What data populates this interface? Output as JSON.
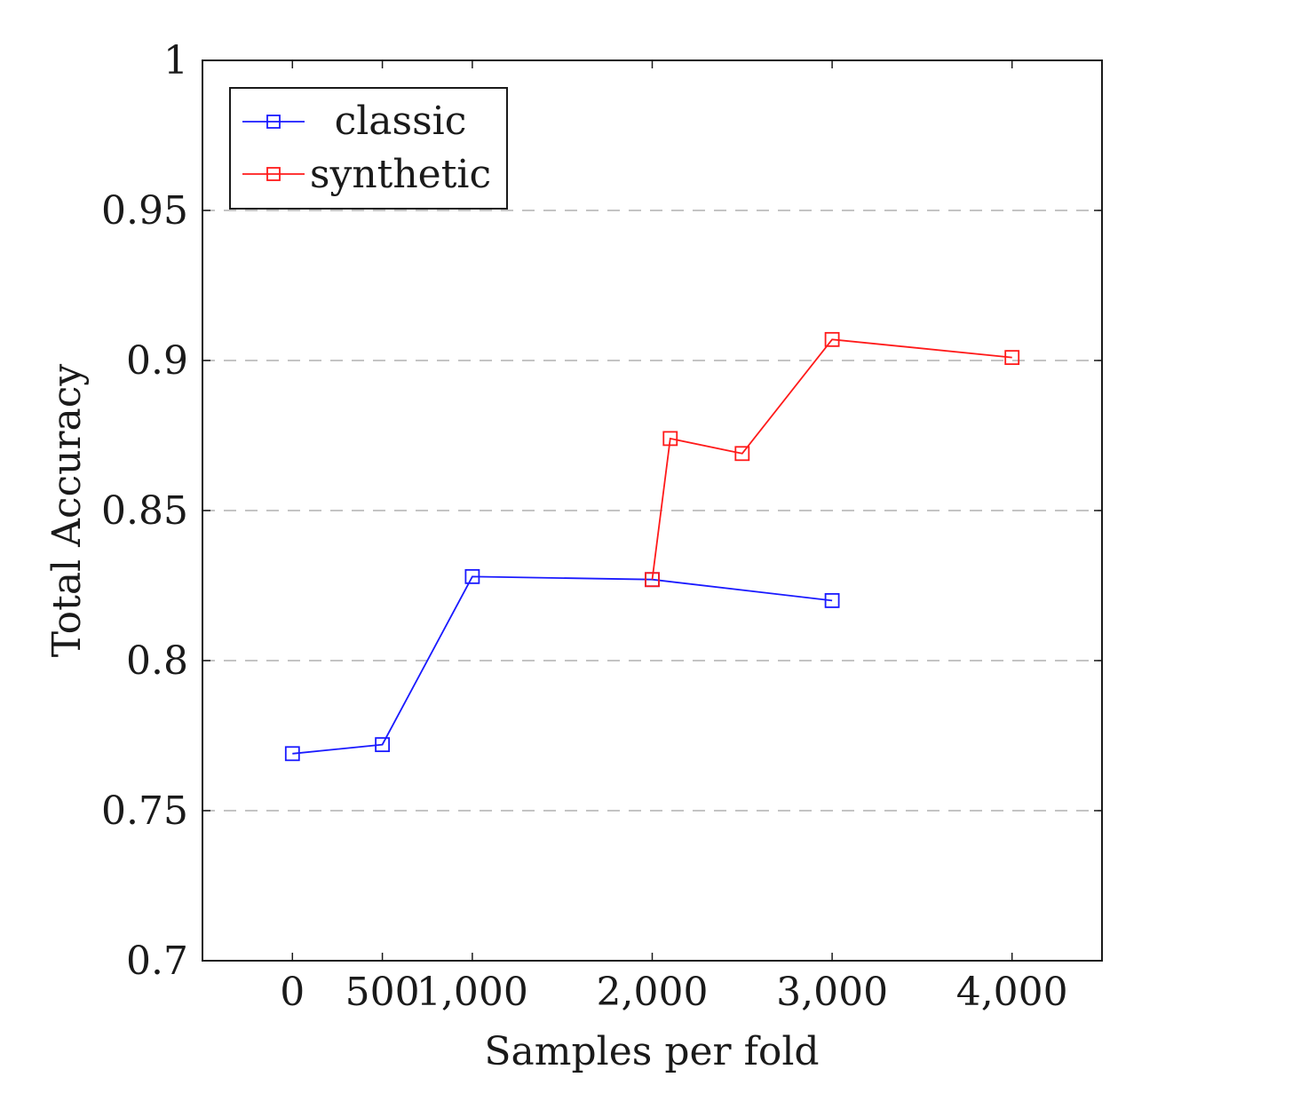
{
  "chart_data": {
    "type": "line",
    "title": "",
    "xlabel": "Samples per fold",
    "ylabel": "Total Accuracy",
    "xlim": [
      -500,
      4500
    ],
    "ylim": [
      0.7,
      1.0
    ],
    "x_ticks": [
      0,
      500,
      1000,
      2000,
      3000,
      4000
    ],
    "x_tick_labels": [
      "0",
      "500",
      "1,000",
      "2,000",
      "3,000",
      "4,000"
    ],
    "y_ticks": [
      0.7,
      0.75,
      0.8,
      0.85,
      0.9,
      0.95,
      1.0
    ],
    "y_tick_labels": [
      "0.7",
      "0.75",
      "0.8",
      "0.85",
      "0.9",
      "0.95",
      "1"
    ],
    "grid": "horizontal dashed",
    "legend_position": "top-left",
    "marker": "square",
    "series": [
      {
        "name": "classic",
        "color": "#1a1aff",
        "x": [
          0,
          500,
          1000,
          2000,
          3000
        ],
        "y": [
          0.769,
          0.772,
          0.828,
          0.827,
          0.82
        ]
      },
      {
        "name": "synthetic",
        "color": "#ff1a1a",
        "x": [
          2000,
          2100,
          2500,
          3000,
          4000
        ],
        "y": [
          0.827,
          0.874,
          0.869,
          0.907,
          0.901
        ]
      }
    ]
  }
}
